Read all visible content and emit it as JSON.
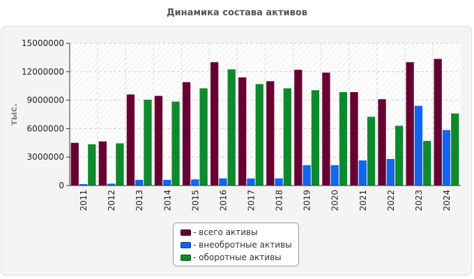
{
  "chart_data": {
    "type": "bar",
    "title": "Динамика состава активов",
    "ylabel": "тыс.",
    "xlabel": "",
    "ylim": [
      0,
      15000000
    ],
    "yticks": [
      0,
      3000000,
      6000000,
      9000000,
      12000000,
      15000000
    ],
    "grid": true,
    "legend_position": "bottom",
    "categories": [
      "2011",
      "2012",
      "2013",
      "2014",
      "2015",
      "2016",
      "2017",
      "2018",
      "2019",
      "2020",
      "2021",
      "2022",
      "2023",
      "2024"
    ],
    "series": [
      {
        "name": "всего активы",
        "color": "#660033",
        "values": [
          4500000,
          4650000,
          9600000,
          9450000,
          10900000,
          13000000,
          11400000,
          11000000,
          12200000,
          11900000,
          9850000,
          9100000,
          13000000,
          13350000
        ]
      },
      {
        "name": "внеобротные активы",
        "color": "#1166ee",
        "values": [
          150000,
          200000,
          600000,
          600000,
          650000,
          750000,
          750000,
          750000,
          2150000,
          2150000,
          2650000,
          2800000,
          8400000,
          5850000
        ]
      },
      {
        "name": "оборотные активы",
        "color": "#0d8b2c",
        "values": [
          4350000,
          4450000,
          9050000,
          8850000,
          10250000,
          12250000,
          10700000,
          10250000,
          10050000,
          9850000,
          7250000,
          6300000,
          4700000,
          7600000
        ]
      }
    ]
  },
  "legend": {
    "items": [
      {
        "label": "- всего активы",
        "color": "#660033"
      },
      {
        "label": "- внеобротные активы",
        "color": "#1166ee"
      },
      {
        "label": "- оборотные активы",
        "color": "#0d8b2c"
      }
    ]
  }
}
